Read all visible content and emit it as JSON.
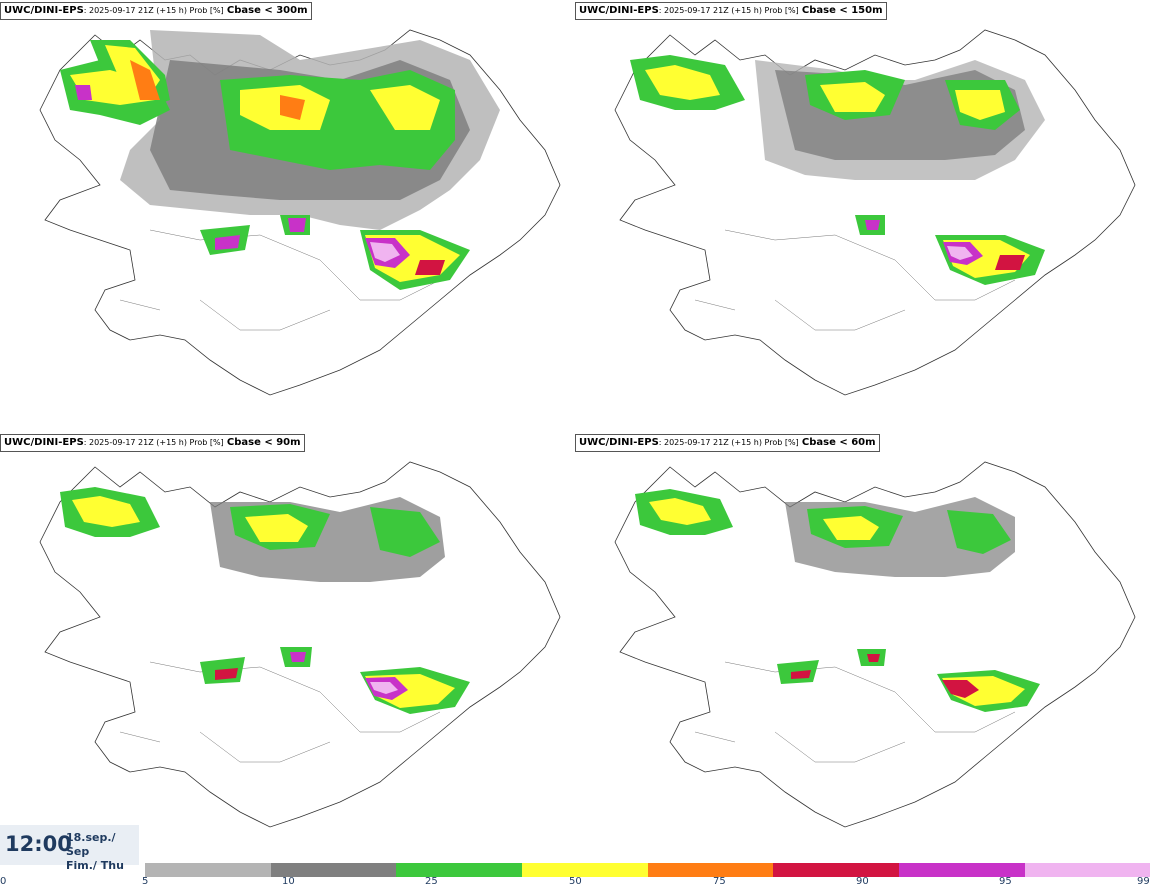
{
  "panels": [
    {
      "model": "UWC/DINI-EPS",
      "run": ": 2025-09-17 21Z (+15 h) Prob [%]",
      "cbase": "Cbase < 300m"
    },
    {
      "model": "UWC/DINI-EPS",
      "run": ": 2025-09-17 21Z (+15 h) Prob [%]",
      "cbase": "Cbase < 150m"
    },
    {
      "model": "UWC/DINI-EPS",
      "run": ": 2025-09-17 21Z (+15 h) Prob [%]",
      "cbase": "Cbase < 90m"
    },
    {
      "model": "UWC/DINI-EPS",
      "run": ": 2025-09-17 21Z (+15 h) Prob [%]",
      "cbase": "Cbase < 60m"
    }
  ],
  "valid_time": {
    "time": "12:00",
    "date_line1": "18.sep./ Sep",
    "date_line2": "Fim./ Thu"
  },
  "colorbar": {
    "ticks": [
      "0",
      "5",
      "10",
      "25",
      "50",
      "75",
      "90",
      "95",
      "99"
    ],
    "colors": [
      "#b4b4b4",
      "#7f7f7f",
      "#3cc83c",
      "#ffff32",
      "#ff7d14",
      "#d21441",
      "#c832c8",
      "#f0b4f0"
    ]
  },
  "colors": {
    "outline": "#333333",
    "background": "#ffffff"
  }
}
